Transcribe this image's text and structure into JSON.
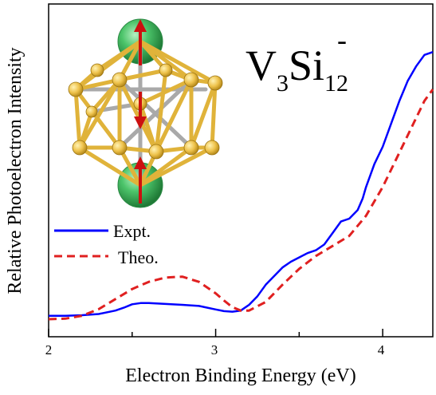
{
  "chart_data": {
    "type": "line",
    "title": "",
    "xlabel": "Electron Binding Energy (eV)",
    "ylabel": "Relative Photoelectron Intensity",
    "xlim": [
      2.0,
      4.3
    ],
    "ylim": [
      0,
      1
    ],
    "x_ticks": [
      "2",
      "3",
      "4"
    ],
    "legend_position": "left",
    "species_label": {
      "base": "V",
      "n1": "3",
      "el2": "Si",
      "n2": "12",
      "charge": "-"
    },
    "series": [
      {
        "name": "Expt.",
        "color": "#0000ff",
        "style": "solid",
        "x": [
          2.0,
          2.1,
          2.2,
          2.3,
          2.4,
          2.45,
          2.5,
          2.55,
          2.6,
          2.7,
          2.8,
          2.9,
          3.0,
          3.05,
          3.1,
          3.15,
          3.2,
          3.25,
          3.3,
          3.35,
          3.4,
          3.45,
          3.5,
          3.55,
          3.6,
          3.65,
          3.7,
          3.75,
          3.8,
          3.85,
          3.88,
          3.9,
          3.95,
          4.0,
          4.05,
          4.1,
          4.15,
          4.2,
          4.25,
          4.3
        ],
        "y": [
          0.012,
          0.012,
          0.014,
          0.018,
          0.03,
          0.04,
          0.052,
          0.056,
          0.056,
          0.053,
          0.05,
          0.046,
          0.034,
          0.028,
          0.026,
          0.03,
          0.05,
          0.08,
          0.12,
          0.15,
          0.18,
          0.2,
          0.215,
          0.23,
          0.24,
          0.26,
          0.3,
          0.34,
          0.35,
          0.38,
          0.42,
          0.46,
          0.54,
          0.6,
          0.68,
          0.76,
          0.83,
          0.88,
          0.92,
          0.93
        ]
      },
      {
        "name": "Theo.",
        "color": "#e02020",
        "style": "dashed",
        "x": [
          2.0,
          2.1,
          2.2,
          2.3,
          2.4,
          2.5,
          2.6,
          2.7,
          2.8,
          2.9,
          3.0,
          3.05,
          3.1,
          3.15,
          3.2,
          3.3,
          3.4,
          3.5,
          3.6,
          3.7,
          3.8,
          3.9,
          4.0,
          4.1,
          4.2,
          4.25,
          4.3
        ],
        "y": [
          0.0,
          0.002,
          0.012,
          0.035,
          0.07,
          0.105,
          0.13,
          0.145,
          0.148,
          0.13,
          0.09,
          0.065,
          0.042,
          0.03,
          0.03,
          0.06,
          0.12,
          0.175,
          0.22,
          0.255,
          0.29,
          0.36,
          0.46,
          0.58,
          0.7,
          0.76,
          0.8
        ]
      }
    ]
  }
}
